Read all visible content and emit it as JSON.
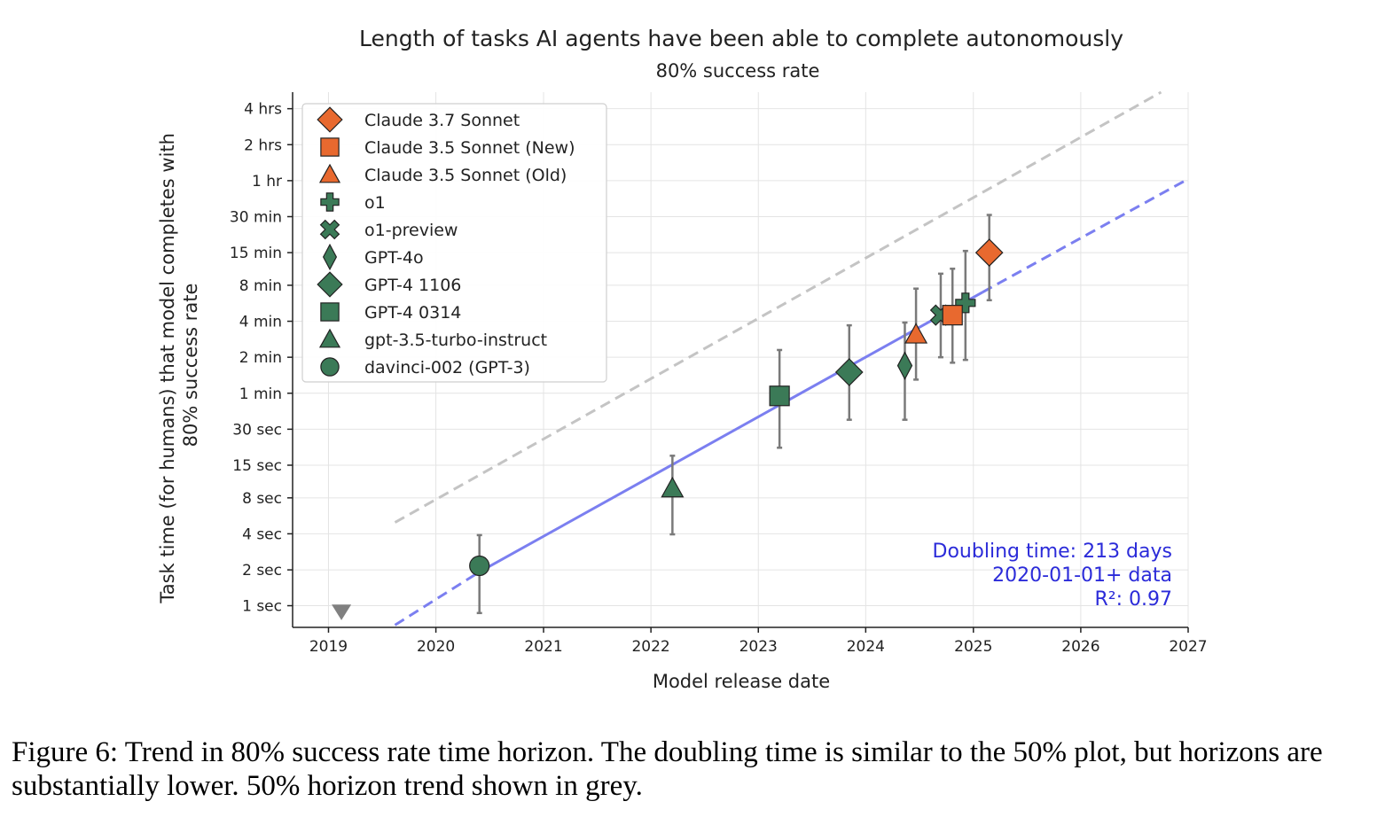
{
  "figure": {
    "caption": "Figure 6: Trend in 80% success rate time horizon. The doubling time is similar to the 50% plot, but horizons are substantially lower. 50% horizon trend shown in grey."
  },
  "chart_data": {
    "type": "scatter",
    "title": "Length of tasks AI agents have been able to complete autonomously",
    "subtitle": "80% success rate",
    "xlabel": "Model release date",
    "ylabel_lines": [
      "Task time (for humans) that model completes with",
      "80% success rate"
    ],
    "x_scale": "date",
    "y_scale": "log",
    "y_unit": "minutes",
    "xlim": [
      "2018-09-01",
      "2027-01-01"
    ],
    "ylim_minutes": [
      0.011,
      330
    ],
    "grid": true,
    "legend_placement": "top-left",
    "x_ticks": [
      {
        "date": "2019-01-01",
        "label": "2019"
      },
      {
        "date": "2020-01-01",
        "label": "2020"
      },
      {
        "date": "2021-01-01",
        "label": "2021"
      },
      {
        "date": "2022-01-01",
        "label": "2022"
      },
      {
        "date": "2023-01-01",
        "label": "2023"
      },
      {
        "date": "2024-01-01",
        "label": "2024"
      },
      {
        "date": "2025-01-01",
        "label": "2025"
      },
      {
        "date": "2026-01-01",
        "label": "2026"
      },
      {
        "date": "2027-01-01",
        "label": "2027"
      }
    ],
    "y_ticks": [
      {
        "minutes": 240,
        "label": "4 hrs"
      },
      {
        "minutes": 120,
        "label": "2 hrs"
      },
      {
        "minutes": 60,
        "label": "1 hr"
      },
      {
        "minutes": 30,
        "label": "30 min"
      },
      {
        "minutes": 15,
        "label": "15 min"
      },
      {
        "minutes": 8,
        "label": "8 min"
      },
      {
        "minutes": 4,
        "label": "4 min"
      },
      {
        "minutes": 2,
        "label": "2 min"
      },
      {
        "minutes": 1,
        "label": "1 min"
      },
      {
        "minutes": 0.5,
        "label": "30 sec"
      },
      {
        "minutes": 0.25,
        "label": "15 sec"
      },
      {
        "minutes": 0.1333,
        "label": "8 sec"
      },
      {
        "minutes": 0.0667,
        "label": "4 sec"
      },
      {
        "minutes": 0.0333,
        "label": "2 sec"
      },
      {
        "minutes": 0.0167,
        "label": "1 sec"
      }
    ],
    "models": [
      {
        "name": "Claude 3.7 Sonnet",
        "marker": "diamond",
        "color": "#e8692f",
        "date": "2025-02-24",
        "minutes": 15,
        "ci_low": 6,
        "ci_high": 31
      },
      {
        "name": "Claude 3.5 Sonnet (New)",
        "marker": "square",
        "color": "#e8692f",
        "date": "2024-10-22",
        "minutes": 4.5,
        "ci_low": 1.8,
        "ci_high": 11
      },
      {
        "name": "Claude 3.5 Sonnet (Old)",
        "marker": "triangle",
        "color": "#e8692f",
        "date": "2024-06-20",
        "minutes": 3.1,
        "ci_low": 1.3,
        "ci_high": 7.5
      },
      {
        "name": "o1",
        "marker": "plus",
        "color": "#3b7a57",
        "date": "2024-12-05",
        "minutes": 5.7,
        "ci_low": 1.9,
        "ci_high": 15.5
      },
      {
        "name": "o1-preview",
        "marker": "x",
        "color": "#3b7a57",
        "date": "2024-09-12",
        "minutes": 4.5,
        "ci_low": 2.0,
        "ci_high": 10
      },
      {
        "name": "GPT-4o",
        "marker": "thin-diamond",
        "color": "#3b7a57",
        "date": "2024-05-13",
        "minutes": 1.7,
        "ci_low": 0.6,
        "ci_high": 3.9
      },
      {
        "name": "GPT-4 1106",
        "marker": "diamond",
        "color": "#3b7a57",
        "date": "2023-11-06",
        "minutes": 1.5,
        "ci_low": 0.6,
        "ci_high": 3.7
      },
      {
        "name": "GPT-4 0314",
        "marker": "square",
        "color": "#3b7a57",
        "date": "2023-03-14",
        "minutes": 0.95,
        "ci_low": 0.35,
        "ci_high": 2.3
      },
      {
        "name": "gpt-3.5-turbo-instruct",
        "marker": "triangle",
        "color": "#3b7a57",
        "date": "2022-03-15",
        "minutes": 0.16,
        "ci_low": 0.066,
        "ci_high": 0.3
      },
      {
        "name": "davinci-002 (GPT-3)",
        "marker": "circle",
        "color": "#3b7a57",
        "date": "2020-05-28",
        "minutes": 0.036,
        "ci_low": 0.0145,
        "ci_high": 0.065
      }
    ],
    "below_range_point": {
      "date": "2019-02-14",
      "marker": "down-triangle",
      "color": "#808080"
    },
    "trend_lines": [
      {
        "label": "80% trend",
        "color": "#7b7ff0",
        "points": [
          {
            "date": "2019-08-15",
            "minutes": 0.0115
          },
          {
            "date": "2020-05-28",
            "minutes": 0.032
          },
          {
            "date": "2025-02-01",
            "minutes": 7
          },
          {
            "date": "2027-01-01",
            "minutes": 62
          }
        ],
        "solid_range": [
          "2020-05-28",
          "2025-02-01"
        ]
      },
      {
        "label": "50% trend",
        "color": "#c4c4c4",
        "points": [
          {
            "date": "2019-08-15",
            "minutes": 0.083
          },
          {
            "date": "2026-10-01",
            "minutes": 330
          }
        ],
        "solid_range": null
      }
    ],
    "annotation": {
      "lines": [
        "Doubling time: 213 days",
        "2020-01-01+ data",
        "R²: 0.97"
      ],
      "color": "#2b2bd9",
      "placement": "bottom-right"
    }
  }
}
